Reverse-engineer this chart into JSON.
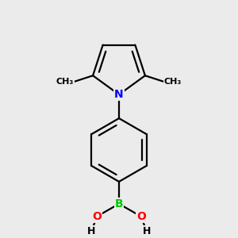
{
  "background_color": "#ebebeb",
  "atom_colors": {
    "N": "#0000ff",
    "B": "#00cc00",
    "O": "#ff0000",
    "C": "#000000",
    "H": "#000000"
  },
  "bond_color": "#000000",
  "bond_width": 1.6,
  "font_size_atom": 10,
  "font_size_small": 9,
  "font_size_methyl": 8
}
